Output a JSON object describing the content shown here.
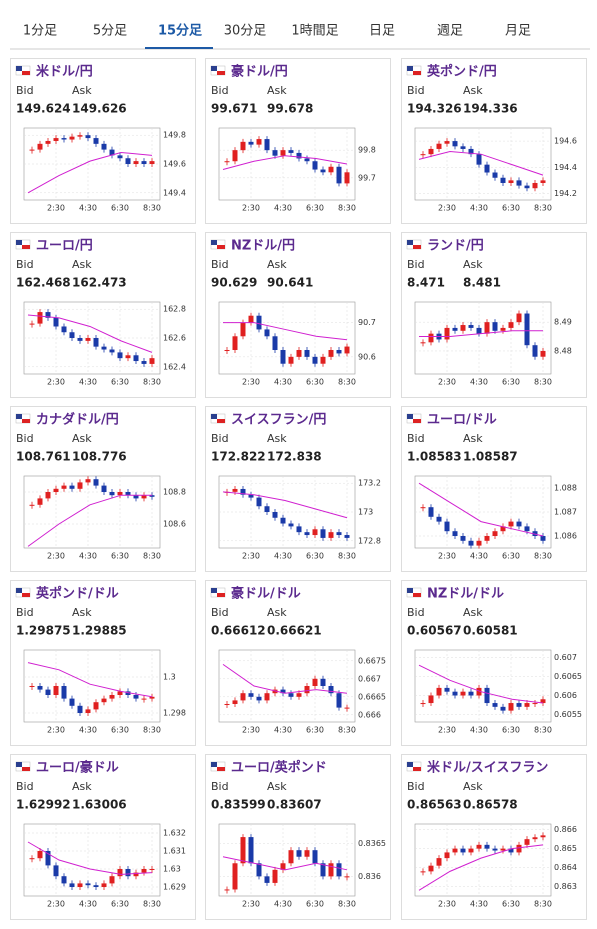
{
  "tabs": [
    "1分足",
    "5分足",
    "15分足",
    "30分足",
    "1時間足",
    "日足",
    "週足",
    "月足"
  ],
  "active_tab": 2,
  "chart_style": {
    "up_color": "#e02020",
    "down_color": "#1a3aa8",
    "ma_color": "#d020d0"
  },
  "cards": [
    {
      "name": "米ドル/円",
      "bid_label": "Bid",
      "ask_label": "Ask",
      "bid": "149.624",
      "ask": "149.626",
      "chart": {
        "type": "candlestick",
        "values": [
          149.7,
          149.74,
          149.76,
          149.78,
          149.77,
          149.79,
          149.8,
          149.78,
          149.74,
          149.7,
          149.66,
          149.64,
          149.6,
          149.62,
          149.6,
          149.62
        ],
        "ma": [
          149.4,
          149.52,
          149.62,
          149.68,
          149.66
        ],
        "ylim": [
          149.35,
          149.85
        ],
        "yticks": [
          149.4,
          149.6,
          149.8
        ],
        "xticks": [
          "2:30",
          "4:30",
          "6:30",
          "8:30"
        ]
      }
    },
    {
      "name": "豪ドル/円",
      "bid_label": "Bid",
      "ask_label": "Ask",
      "bid": "99.671",
      "ask": "99.678",
      "chart": {
        "type": "candlestick",
        "values": [
          99.76,
          99.8,
          99.83,
          99.82,
          99.84,
          99.8,
          99.78,
          99.8,
          99.79,
          99.77,
          99.76,
          99.73,
          99.72,
          99.74,
          99.68,
          99.72
        ],
        "ma": [
          99.73,
          99.76,
          99.78,
          99.77,
          99.75
        ],
        "ylim": [
          99.62,
          99.88
        ],
        "yticks": [
          99.7,
          99.8
        ],
        "xticks": [
          "2:30",
          "4:30",
          "6:30",
          "8:30"
        ]
      }
    },
    {
      "name": "英ポンド/円",
      "bid_label": "Bid",
      "ask_label": "Ask",
      "bid": "194.326",
      "ask": "194.336",
      "chart": {
        "type": "candlestick",
        "values": [
          194.5,
          194.54,
          194.58,
          194.6,
          194.56,
          194.54,
          194.5,
          194.42,
          194.36,
          194.32,
          194.28,
          194.3,
          194.26,
          194.24,
          194.28,
          194.3
        ],
        "ma": [
          194.46,
          194.52,
          194.5,
          194.42,
          194.34
        ],
        "ylim": [
          194.15,
          194.7
        ],
        "yticks": [
          194.2,
          194.4,
          194.6
        ],
        "xticks": [
          "2:30",
          "4:30",
          "6:30",
          "8:30"
        ]
      }
    },
    {
      "name": "ユーロ/円",
      "bid_label": "Bid",
      "ask_label": "Ask",
      "bid": "162.468",
      "ask": "162.473",
      "chart": {
        "type": "candlestick",
        "values": [
          162.7,
          162.78,
          162.74,
          162.68,
          162.64,
          162.6,
          162.58,
          162.6,
          162.54,
          162.52,
          162.5,
          162.46,
          162.48,
          162.44,
          162.42,
          162.46
        ],
        "ma": [
          162.76,
          162.74,
          162.68,
          162.58,
          162.5
        ],
        "ylim": [
          162.35,
          162.85
        ],
        "yticks": [
          162.4,
          162.6,
          162.8
        ],
        "xticks": [
          "2:30",
          "4:30",
          "6:30",
          "8:30"
        ]
      }
    },
    {
      "name": "NZドル/円",
      "bid_label": "Bid",
      "ask_label": "Ask",
      "bid": "90.629",
      "ask": "90.641",
      "chart": {
        "type": "candlestick",
        "values": [
          90.62,
          90.66,
          90.7,
          90.72,
          90.68,
          90.66,
          90.62,
          90.58,
          90.6,
          90.62,
          90.6,
          90.58,
          90.6,
          90.62,
          90.61,
          90.63
        ],
        "ma": [
          90.7,
          90.7,
          90.68,
          90.66,
          90.65
        ],
        "ylim": [
          90.55,
          90.76
        ],
        "yticks": [
          90.6,
          90.7
        ],
        "xticks": [
          "2:30",
          "4:30",
          "6:30",
          "8:30"
        ]
      }
    },
    {
      "name": "ランド/円",
      "bid_label": "Bid",
      "ask_label": "Ask",
      "bid": "8.471",
      "ask": "8.481",
      "chart": {
        "type": "candlestick",
        "values": [
          8.483,
          8.486,
          8.484,
          8.488,
          8.487,
          8.489,
          8.488,
          8.486,
          8.49,
          8.487,
          8.488,
          8.49,
          8.493,
          8.482,
          8.478,
          8.48
        ],
        "ma": [
          8.485,
          8.485,
          8.486,
          8.487,
          8.487
        ],
        "ylim": [
          8.472,
          8.497
        ],
        "yticks": [
          8.48,
          8.49
        ],
        "xticks": [
          "2:30",
          "4:30",
          "6:30",
          "8:30"
        ]
      }
    },
    {
      "name": "カナダドル/円",
      "bid_label": "Bid",
      "ask_label": "Ask",
      "bid": "108.761",
      "ask": "108.776",
      "chart": {
        "type": "candlestick",
        "values": [
          108.72,
          108.76,
          108.8,
          108.82,
          108.84,
          108.82,
          108.86,
          108.88,
          108.84,
          108.8,
          108.78,
          108.8,
          108.78,
          108.76,
          108.78,
          108.77
        ],
        "ma": [
          108.46,
          108.6,
          108.72,
          108.78,
          108.78
        ],
        "ylim": [
          108.45,
          108.9
        ],
        "yticks": [
          108.6,
          108.8
        ],
        "xticks": [
          "2:30",
          "4:30",
          "6:30",
          "8:30"
        ]
      }
    },
    {
      "name": "スイスフラン/円",
      "bid_label": "Bid",
      "ask_label": "Ask",
      "bid": "172.822",
      "ask": "172.838",
      "chart": {
        "type": "candlestick",
        "values": [
          173.14,
          173.16,
          173.12,
          173.1,
          173.04,
          173.0,
          172.96,
          172.92,
          172.9,
          172.86,
          172.84,
          172.88,
          172.82,
          172.86,
          172.84,
          172.82
        ],
        "ma": [
          173.14,
          173.12,
          173.08,
          173.02,
          172.96
        ],
        "ylim": [
          172.75,
          173.25
        ],
        "yticks": [
          172.8,
          173,
          173.2
        ],
        "xticks": [
          "2:30",
          "4:30",
          "6:30",
          "8:30"
        ]
      }
    },
    {
      "name": "ユーロ/ドル",
      "bid_label": "Bid",
      "ask_label": "Ask",
      "bid": "1.08583",
      "ask": "1.08587",
      "chart": {
        "type": "candlestick",
        "values": [
          1.0872,
          1.0868,
          1.0866,
          1.0862,
          1.086,
          1.0858,
          1.0856,
          1.0858,
          1.086,
          1.0862,
          1.0864,
          1.0866,
          1.0864,
          1.0862,
          1.086,
          1.0858
        ],
        "ma": [
          1.0882,
          1.0874,
          1.0866,
          1.0863,
          1.086
        ],
        "ylim": [
          1.0855,
          1.0885
        ],
        "yticks": [
          1.086,
          1.087,
          1.088
        ],
        "xticks": [
          "2:30",
          "4:30",
          "6:30",
          "8:30"
        ]
      }
    },
    {
      "name": "英ポンド/ドル",
      "bid_label": "Bid",
      "ask_label": "Ask",
      "bid": "1.29875",
      "ask": "1.29885",
      "chart": {
        "type": "candlestick",
        "values": [
          1.2995,
          1.2993,
          1.299,
          1.2995,
          1.2988,
          1.2984,
          1.298,
          1.2982,
          1.2986,
          1.2988,
          1.299,
          1.2992,
          1.299,
          1.2988,
          1.2988,
          1.2989
        ],
        "ma": [
          1.3008,
          1.3004,
          1.2996,
          1.2992,
          1.2989
        ],
        "ylim": [
          1.2975,
          1.3015
        ],
        "yticks": [
          1.298,
          1.3
        ],
        "xticks": [
          "2:30",
          "4:30",
          "6:30",
          "8:30"
        ]
      }
    },
    {
      "name": "豪ドル/ドル",
      "bid_label": "Bid",
      "ask_label": "Ask",
      "bid": "0.66612",
      "ask": "0.66621",
      "chart": {
        "type": "candlestick",
        "values": [
          0.6663,
          0.6664,
          0.6666,
          0.6665,
          0.6664,
          0.6666,
          0.6667,
          0.6666,
          0.6665,
          0.6666,
          0.6668,
          0.667,
          0.6668,
          0.6666,
          0.6662,
          0.6662
        ],
        "ma": [
          0.6674,
          0.6668,
          0.6666,
          0.6667,
          0.6666
        ],
        "ylim": [
          0.6658,
          0.6678
        ],
        "yticks": [
          0.666,
          0.6665,
          0.667,
          0.6675
        ],
        "xticks": [
          "2:30",
          "4:30",
          "6:30",
          "8:30"
        ]
      }
    },
    {
      "name": "NZドル/ドル",
      "bid_label": "Bid",
      "ask_label": "Ask",
      "bid": "0.60567",
      "ask": "0.60581",
      "chart": {
        "type": "candlestick",
        "values": [
          0.6058,
          0.606,
          0.6062,
          0.6061,
          0.606,
          0.6061,
          0.606,
          0.6062,
          0.6058,
          0.6057,
          0.6056,
          0.6058,
          0.6057,
          0.6058,
          0.6058,
          0.6059
        ],
        "ma": [
          0.6068,
          0.6064,
          0.6061,
          0.6059,
          0.6058
        ],
        "ylim": [
          0.6053,
          0.6072
        ],
        "yticks": [
          0.6055,
          0.606,
          0.6065,
          0.607
        ],
        "xticks": [
          "2:30",
          "4:30",
          "6:30",
          "8:30"
        ]
      }
    },
    {
      "name": "ユーロ/豪ドル",
      "bid_label": "Bid",
      "ask_label": "Ask",
      "bid": "1.62992",
      "ask": "1.63006",
      "chart": {
        "type": "candlestick",
        "values": [
          1.6306,
          1.631,
          1.6302,
          1.6296,
          1.6292,
          1.629,
          1.6292,
          1.6291,
          1.629,
          1.6292,
          1.6296,
          1.63,
          1.6296,
          1.6298,
          1.63,
          1.63
        ],
        "ma": [
          1.6315,
          1.6305,
          1.63,
          1.6297,
          1.6298
        ],
        "ylim": [
          1.6285,
          1.6325
        ],
        "yticks": [
          1.629,
          1.63,
          1.631,
          1.632
        ],
        "xticks": [
          "2:30",
          "4:30",
          "6:30",
          "8:30"
        ]
      }
    },
    {
      "name": "ユーロ/英ポンド",
      "bid_label": "Bid",
      "ask_label": "Ask",
      "bid": "0.83599",
      "ask": "0.83607",
      "chart": {
        "type": "candlestick",
        "values": [
          0.8358,
          0.8362,
          0.8366,
          0.8362,
          0.836,
          0.8359,
          0.8361,
          0.8362,
          0.8364,
          0.8363,
          0.8364,
          0.8362,
          0.836,
          0.8362,
          0.836,
          0.836
        ],
        "ma": [
          0.8363,
          0.8362,
          0.8361,
          0.8362,
          0.8361
        ],
        "ylim": [
          0.8357,
          0.8368
        ],
        "yticks": [
          0.836,
          0.8365
        ],
        "xticks": [
          "2:30",
          "4:30",
          "6:30",
          "8:30"
        ]
      }
    },
    {
      "name": "米ドル/スイスフラン",
      "bid_label": "Bid",
      "ask_label": "Ask",
      "bid": "0.86563",
      "ask": "0.86578",
      "chart": {
        "type": "candlestick",
        "values": [
          0.8638,
          0.8641,
          0.8645,
          0.8648,
          0.865,
          0.8648,
          0.865,
          0.8652,
          0.865,
          0.8649,
          0.865,
          0.8648,
          0.8652,
          0.8655,
          0.8656,
          0.8657
        ],
        "ma": [
          0.8628,
          0.8638,
          0.8645,
          0.865,
          0.8652
        ],
        "ylim": [
          0.8625,
          0.8663
        ],
        "yticks": [
          0.863,
          0.864,
          0.865,
          0.866
        ],
        "xticks": [
          "2:30",
          "4:30",
          "6:30",
          "8:30"
        ]
      }
    }
  ]
}
